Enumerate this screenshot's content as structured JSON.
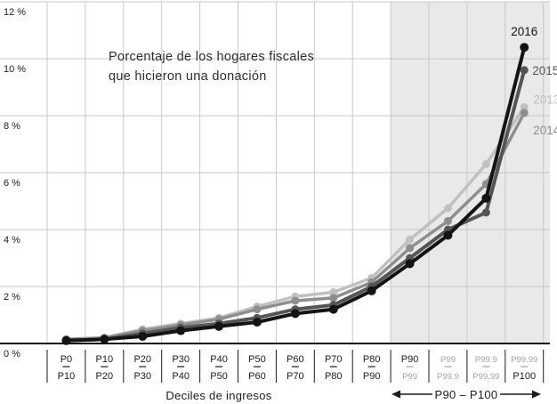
{
  "chart_data": {
    "type": "line",
    "title": "Porcentaje de los hogares fiscales que hicieron una donación",
    "annotation": {
      "line1": "Porcentaje de los hogares fiscales",
      "line2": "que hicieron una donación"
    },
    "xlabel": "Deciles de ingresos",
    "ylabel": "",
    "ylim": [
      0,
      12
    ],
    "grid": true,
    "yticks": [
      {
        "value": 0,
        "label": "0 %"
      },
      {
        "value": 2,
        "label": "2 %"
      },
      {
        "value": 4,
        "label": "4 %"
      },
      {
        "value": 6,
        "label": "6 %"
      },
      {
        "value": 8,
        "label": "8 %"
      },
      {
        "value": 10,
        "label": "10 %"
      },
      {
        "value": 12,
        "label": "12 %"
      }
    ],
    "categories": [
      {
        "top": "P0",
        "bottom": "P10",
        "muted_top": false,
        "muted_bottom": false
      },
      {
        "top": "P10",
        "bottom": "P20",
        "muted_top": false,
        "muted_bottom": false
      },
      {
        "top": "P20",
        "bottom": "P30",
        "muted_top": false,
        "muted_bottom": false
      },
      {
        "top": "P30",
        "bottom": "P40",
        "muted_top": false,
        "muted_bottom": false
      },
      {
        "top": "P40",
        "bottom": "P50",
        "muted_top": false,
        "muted_bottom": false
      },
      {
        "top": "P50",
        "bottom": "P60",
        "muted_top": false,
        "muted_bottom": false
      },
      {
        "top": "P60",
        "bottom": "P70",
        "muted_top": false,
        "muted_bottom": false
      },
      {
        "top": "P70",
        "bottom": "P80",
        "muted_top": false,
        "muted_bottom": false
      },
      {
        "top": "P80",
        "bottom": "P90",
        "muted_top": false,
        "muted_bottom": false
      },
      {
        "top": "P90",
        "bottom": "P99",
        "muted_top": false,
        "muted_bottom": true
      },
      {
        "top": "P99",
        "bottom": "P99.9",
        "muted_top": true,
        "muted_bottom": true
      },
      {
        "top": "P99.9",
        "bottom": "P99.99",
        "muted_top": true,
        "muted_bottom": true
      },
      {
        "top": "P99.99",
        "bottom": "P100",
        "muted_top": true,
        "muted_bottom": false
      }
    ],
    "series": [
      {
        "name": "2013",
        "color": "#c0c0c0",
        "stroke_width": 3.5,
        "marker_r": 4.5,
        "values": [
          0.15,
          0.2,
          0.5,
          0.7,
          0.9,
          1.3,
          1.65,
          1.8,
          2.3,
          3.65,
          4.75,
          6.3,
          8.3
        ],
        "label_dx": 10,
        "label_dy": -4,
        "label_anchor": "start"
      },
      {
        "name": "2014",
        "color": "#8e8e8e",
        "stroke_width": 3.5,
        "marker_r": 4.5,
        "values": [
          0.15,
          0.2,
          0.45,
          0.65,
          0.85,
          1.2,
          1.5,
          1.6,
          2.15,
          3.35,
          4.3,
          5.6,
          8.1
        ],
        "label_dx": 10,
        "label_dy": 24,
        "label_anchor": "start"
      },
      {
        "name": "2015",
        "color": "#555555",
        "stroke_width": 4,
        "marker_r": 4.5,
        "values": [
          0.1,
          0.15,
          0.35,
          0.55,
          0.7,
          0.9,
          1.2,
          1.35,
          2.0,
          3.0,
          4.0,
          4.6,
          9.6
        ],
        "label_dx": 9,
        "label_dy": 5,
        "label_anchor": "start"
      },
      {
        "name": "2016",
        "color": "#141414",
        "stroke_width": 4,
        "marker_r": 5,
        "values": [
          0.1,
          0.15,
          0.25,
          0.45,
          0.6,
          0.75,
          1.05,
          1.2,
          1.85,
          2.8,
          3.8,
          5.1,
          10.4
        ],
        "label_dx": 0,
        "label_dy": -13,
        "label_anchor": "middle"
      }
    ],
    "highlight_region": {
      "start_category_index": 9,
      "label": "P90 – P100",
      "color": "#e9e9e9"
    },
    "colors": {
      "gridline": "#c8c8c8",
      "axis": "#111111",
      "tick_text": "#1c1c1c",
      "muted_tick_text": "#a3a3a3"
    },
    "legend_position": "end-of-line"
  }
}
